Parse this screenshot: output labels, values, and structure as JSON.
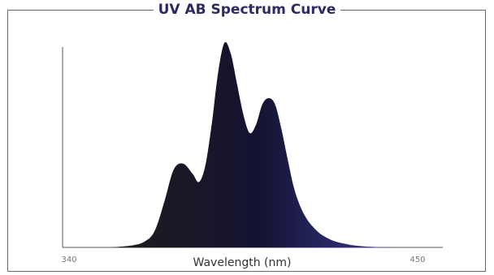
{
  "chart_data": {
    "type": "area",
    "title": "UV AB Spectrum Curve",
    "xlabel": "Wavelength (nm)",
    "ylabel": "",
    "xlim": [
      340,
      450
    ],
    "ylim": [
      0,
      1
    ],
    "x_ticks": [
      340,
      450
    ],
    "grid": false,
    "legend": "none",
    "colors": {
      "left": "#1e1e1e",
      "middle": "#141230",
      "right": "#3a3d96",
      "title": "#2b2a63",
      "frame": "#6b6b6b"
    },
    "series": [
      {
        "x": [
          353,
          360,
          364,
          367,
          370,
          373,
          376,
          379,
          381,
          383,
          385,
          387,
          389,
          391,
          393,
          395,
          397,
          399,
          401,
          403,
          405,
          407,
          409,
          411,
          413,
          415,
          417,
          419,
          421,
          423,
          425,
          427,
          429,
          431,
          434,
          437,
          441,
          445
        ],
        "values": [
          0.0,
          0.01,
          0.03,
          0.08,
          0.22,
          0.38,
          0.41,
          0.36,
          0.32,
          0.4,
          0.6,
          0.85,
          1.0,
          0.95,
          0.8,
          0.65,
          0.56,
          0.6,
          0.7,
          0.73,
          0.7,
          0.58,
          0.43,
          0.29,
          0.2,
          0.14,
          0.1,
          0.07,
          0.05,
          0.035,
          0.025,
          0.018,
          0.012,
          0.008,
          0.004,
          0.002,
          0.001,
          0.0
        ]
      }
    ]
  }
}
